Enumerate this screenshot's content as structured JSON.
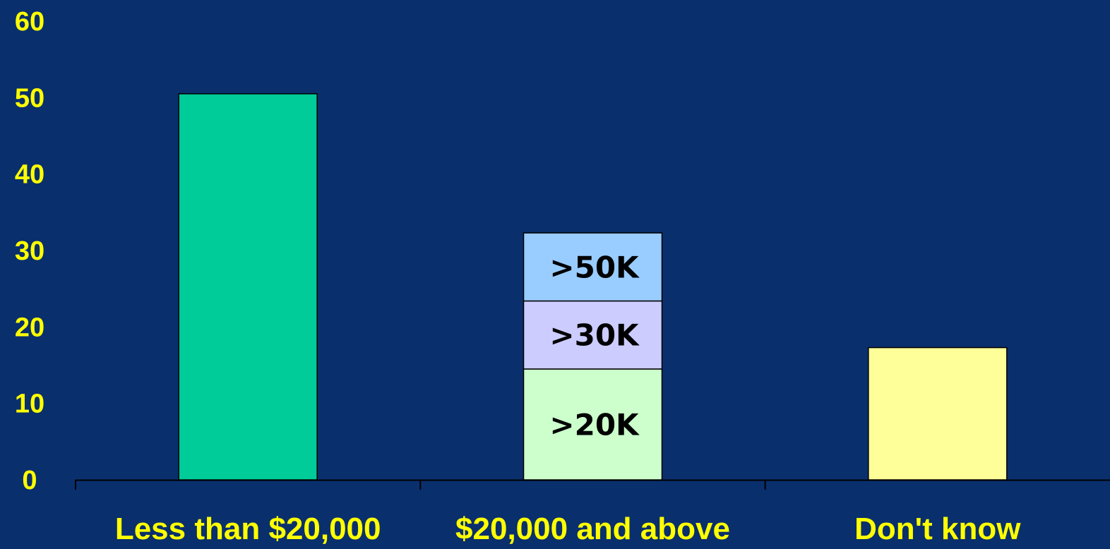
{
  "chart_data": {
    "type": "bar",
    "stacked": true,
    "categories": [
      "Less than $20,000",
      "$20,000 and above",
      "Don't know"
    ],
    "series": [
      {
        "label": "",
        "values": [
          50.5,
          0,
          17.3
        ],
        "color_by_category": [
          "#00CC99",
          null,
          "#FFFF99"
        ]
      },
      {
        "label": ">20K",
        "values": [
          0,
          14.5,
          0
        ],
        "color": "#CCFFCC"
      },
      {
        "label": ">30K",
        "values": [
          0,
          8.9,
          0
        ],
        "color": "#CCCCFF"
      },
      {
        "label": ">50K",
        "values": [
          0,
          8.9,
          0
        ],
        "color": "#99CCFF"
      }
    ],
    "yticks": [
      0,
      10,
      20,
      30,
      40,
      50,
      60
    ],
    "ylim": [
      0,
      60
    ],
    "grid": false,
    "legend": "none",
    "colors": {
      "background": "#0A2F6D",
      "tick_text": "#FFFF00",
      "segment_text": "#000000",
      "axis": "#000000"
    }
  }
}
